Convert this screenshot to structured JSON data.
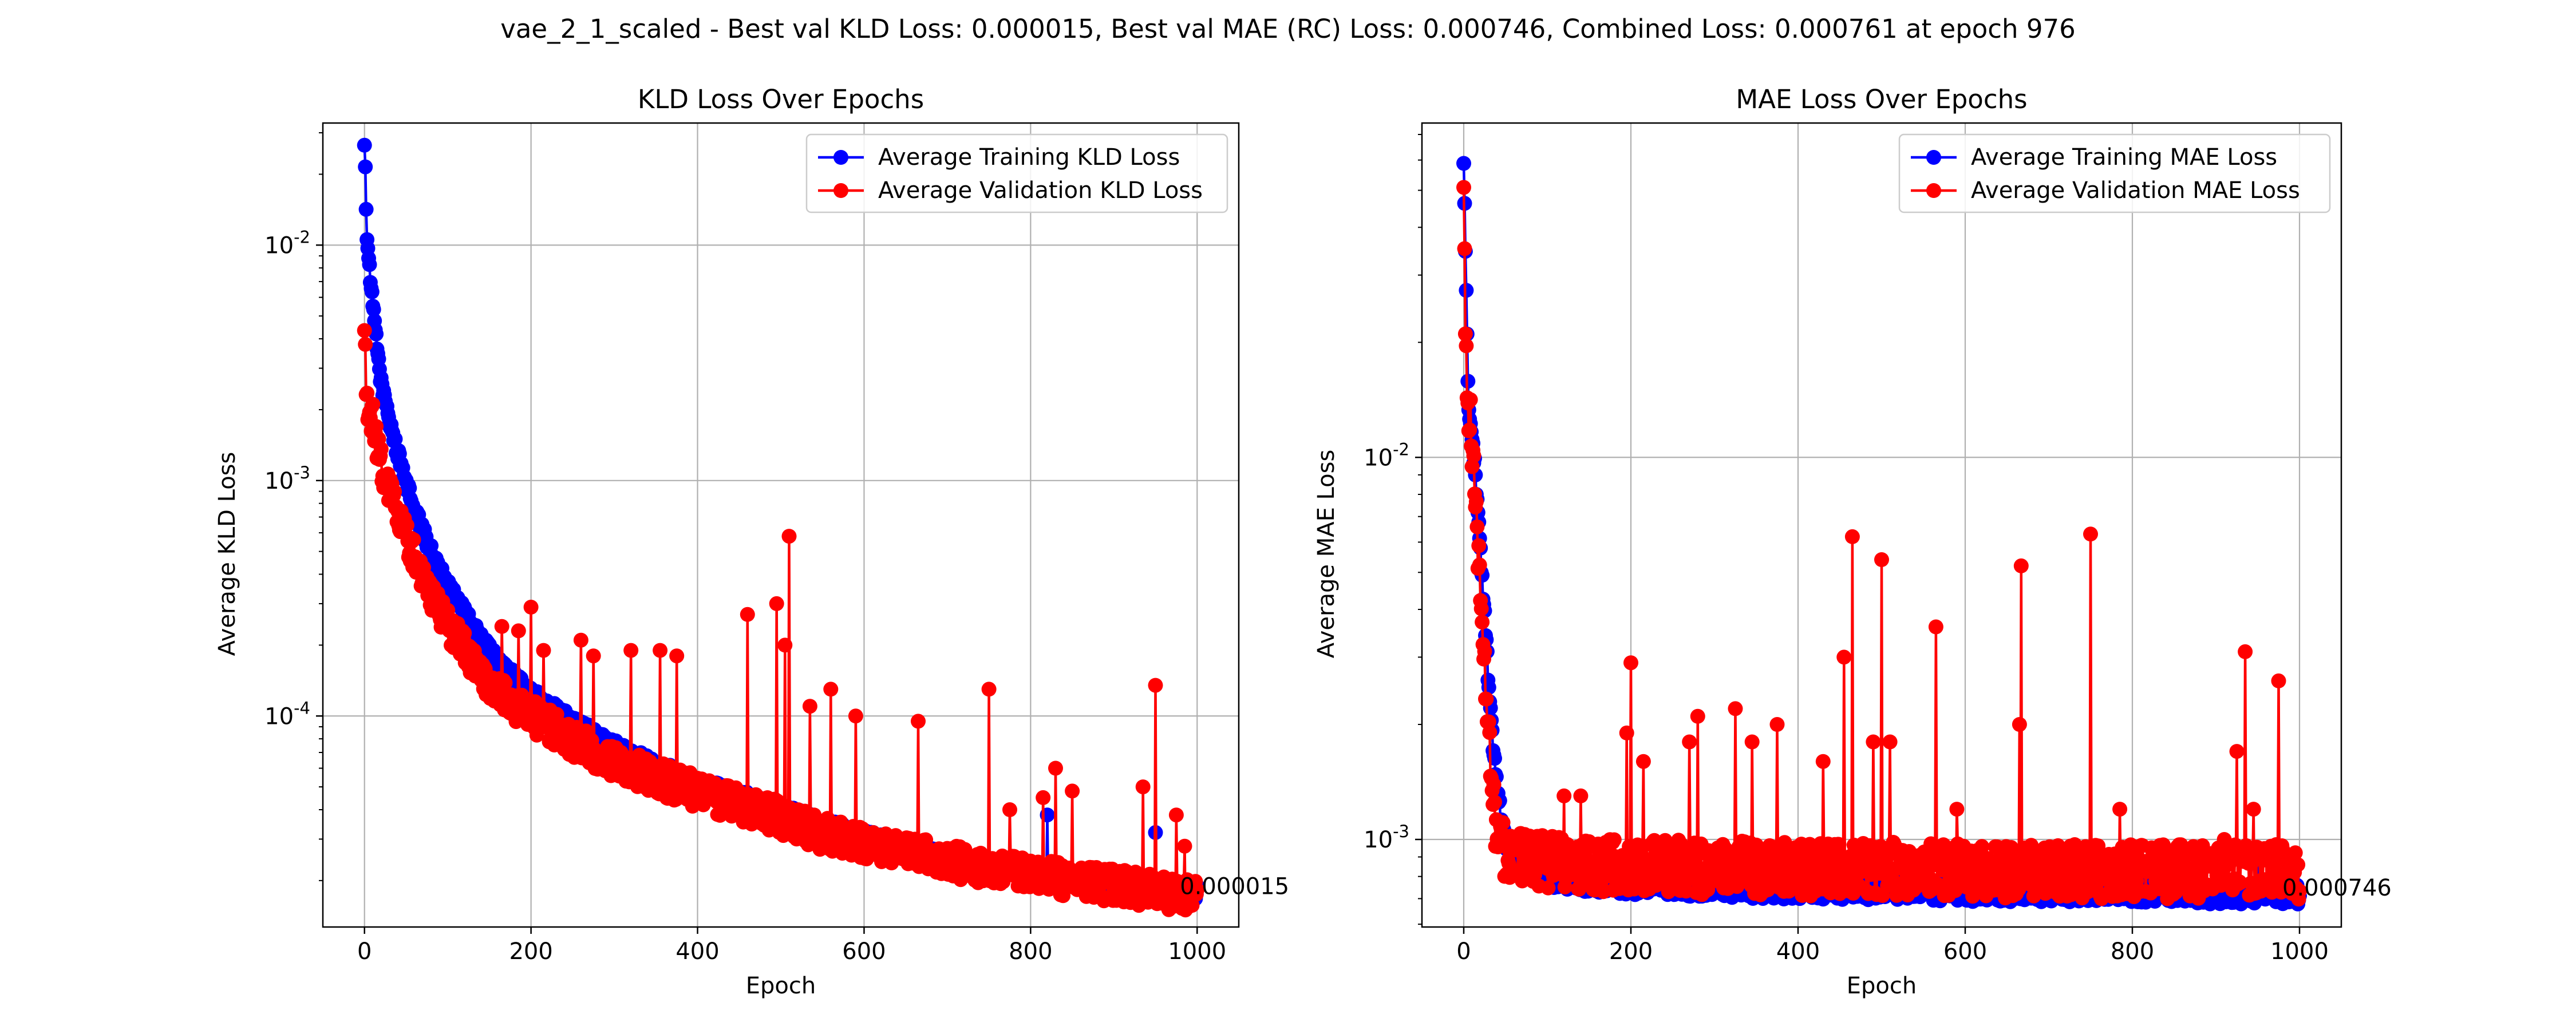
{
  "figure": {
    "suptitle": "vae_2_1_scaled - Best val KLD Loss: 0.000015, Best val MAE (RC) Loss: 0.000746, Combined Loss: 0.000761 at epoch 976"
  },
  "colors": {
    "training": "#0000ff",
    "validation": "#ff0000",
    "grid": "#b0b0b0",
    "axis": "#000000"
  },
  "chart_data": [
    {
      "type": "line",
      "title": "KLD Loss Over Epochs",
      "xlabel": "Epoch",
      "ylabel": "Average KLD Loss",
      "yscale": "log",
      "xlim": [
        -50,
        1050
      ],
      "ylim": [
        1.27e-05,
        0.033
      ],
      "xticks": [
        0,
        200,
        400,
        600,
        800,
        1000
      ],
      "xtick_labels": [
        "0",
        "200",
        "400",
        "600",
        "800",
        "1000"
      ],
      "yticks": [
        0.0001,
        0.001,
        0.01
      ],
      "ytick_labels": [
        "10^-4",
        "10^-3",
        "10^-2"
      ],
      "grid": true,
      "legend_position": "upper right",
      "annotation": "0.000015",
      "train_curve": {
        "points": [
          [
            0,
            0.028
          ],
          [
            3,
            0.011
          ],
          [
            6,
            0.0078
          ],
          [
            10,
            0.0055
          ],
          [
            15,
            0.0037
          ],
          [
            20,
            0.0026
          ],
          [
            30,
            0.0018
          ],
          [
            40,
            0.0013
          ],
          [
            60,
            0.00075
          ],
          [
            80,
            0.0005
          ],
          [
            100,
            0.00036
          ],
          [
            130,
            0.00024
          ],
          [
            160,
            0.00017
          ],
          [
            200,
            0.000125
          ],
          [
            250,
            9.5e-05
          ],
          [
            300,
            7.5e-05
          ],
          [
            350,
            6.2e-05
          ],
          [
            400,
            5.2e-05
          ],
          [
            450,
            4.6e-05
          ],
          [
            500,
            4e-05
          ],
          [
            550,
            3.5e-05
          ],
          [
            600,
            3.1e-05
          ],
          [
            650,
            2.8e-05
          ],
          [
            700,
            2.5e-05
          ],
          [
            750,
            2.3e-05
          ],
          [
            800,
            2.1e-05
          ],
          [
            850,
            2e-05
          ],
          [
            900,
            1.9e-05
          ],
          [
            950,
            1.8e-05
          ],
          [
            1000,
            1.7e-05
          ]
        ]
      },
      "val_curve": {
        "points": [
          [
            0,
            0.0038
          ],
          [
            3,
            0.002
          ],
          [
            6,
            0.0018
          ],
          [
            10,
            0.0017
          ],
          [
            15,
            0.0013
          ],
          [
            20,
            0.0011
          ],
          [
            30,
            0.00085
          ],
          [
            40,
            0.00065
          ],
          [
            60,
            0.00045
          ],
          [
            80,
            0.00031
          ],
          [
            100,
            0.00023
          ],
          [
            130,
            0.00016
          ],
          [
            160,
            0.00012
          ],
          [
            200,
            9.5e-05
          ],
          [
            250,
            7.5e-05
          ],
          [
            300,
            6e-05
          ],
          [
            350,
            5.2e-05
          ],
          [
            400,
            4.5e-05
          ],
          [
            450,
            4e-05
          ],
          [
            500,
            3.5e-05
          ],
          [
            550,
            3e-05
          ],
          [
            600,
            2.7e-05
          ],
          [
            650,
            2.5e-05
          ],
          [
            700,
            2.3e-05
          ],
          [
            750,
            2.1e-05
          ],
          [
            800,
            2e-05
          ],
          [
            850,
            1.9e-05
          ],
          [
            900,
            1.8e-05
          ],
          [
            950,
            1.7e-05
          ],
          [
            1000,
            1.6e-05
          ]
        ]
      },
      "train_spikes": [
        [
          820,
          3.8e-05
        ],
        [
          950,
          3.2e-05
        ],
        [
          1000,
          1.9e-05
        ]
      ],
      "val_spikes": [
        [
          165,
          0.00024
        ],
        [
          185,
          0.00023
        ],
        [
          200,
          0.00029
        ],
        [
          215,
          0.00019
        ],
        [
          260,
          0.00021
        ],
        [
          275,
          0.00018
        ],
        [
          320,
          0.00019
        ],
        [
          355,
          0.00019
        ],
        [
          375,
          0.00018
        ],
        [
          460,
          0.00027
        ],
        [
          495,
          0.0003
        ],
        [
          505,
          0.0002
        ],
        [
          510,
          0.00058
        ],
        [
          535,
          0.00011
        ],
        [
          560,
          0.00013
        ],
        [
          590,
          0.0001
        ],
        [
          665,
          9.5e-05
        ],
        [
          750,
          0.00013
        ],
        [
          775,
          4e-05
        ],
        [
          815,
          4.5e-05
        ],
        [
          830,
          6e-05
        ],
        [
          850,
          4.8e-05
        ],
        [
          935,
          5e-05
        ],
        [
          950,
          0.000135
        ],
        [
          975,
          3.8e-05
        ],
        [
          985,
          2.8e-05
        ]
      ]
    },
    {
      "type": "line",
      "title": "MAE Loss Over Epochs",
      "xlabel": "Epoch",
      "ylabel": "Average MAE Loss",
      "yscale": "log",
      "xlim": [
        -50,
        1050
      ],
      "ylim": [
        0.00059,
        0.075
      ],
      "xticks": [
        0,
        200,
        400,
        600,
        800,
        1000
      ],
      "xtick_labels": [
        "0",
        "200",
        "400",
        "600",
        "800",
        "1000"
      ],
      "yticks": [
        0.001,
        0.01
      ],
      "ytick_labels": [
        "10^-3",
        "10^-2"
      ],
      "grid": true,
      "legend_position": "upper right",
      "annotation": "0.000746",
      "train_curve": {
        "points": [
          [
            0,
            0.06
          ],
          [
            2,
            0.035
          ],
          [
            5,
            0.015
          ],
          [
            10,
            0.011
          ],
          [
            15,
            0.0085
          ],
          [
            20,
            0.0055
          ],
          [
            25,
            0.0038
          ],
          [
            30,
            0.0025
          ],
          [
            35,
            0.0018
          ],
          [
            40,
            0.0013
          ],
          [
            50,
            0.001
          ],
          [
            60,
            0.00092
          ],
          [
            80,
            0.00085
          ],
          [
            100,
            0.0008
          ],
          [
            150,
            0.00077
          ],
          [
            200,
            0.00076
          ],
          [
            300,
            0.00075
          ],
          [
            400,
            0.00074
          ],
          [
            500,
            0.00074
          ],
          [
            600,
            0.00073
          ],
          [
            700,
            0.00073
          ],
          [
            800,
            0.00073
          ],
          [
            900,
            0.00072
          ],
          [
            1000,
            0.00072
          ]
        ]
      },
      "val_curve": {
        "points": [
          [
            0,
            0.055
          ],
          [
            2,
            0.019
          ],
          [
            5,
            0.014
          ],
          [
            10,
            0.01
          ],
          [
            15,
            0.0065
          ],
          [
            20,
            0.0042
          ],
          [
            25,
            0.0025
          ],
          [
            30,
            0.0017
          ],
          [
            35,
            0.0012
          ],
          [
            40,
            0.00095
          ],
          [
            50,
            0.00087
          ],
          [
            60,
            0.00085
          ],
          [
            80,
            0.00084
          ],
          [
            100,
            0.00082
          ],
          [
            150,
            0.00081
          ],
          [
            200,
            0.0008
          ],
          [
            300,
            0.0008
          ],
          [
            400,
            0.00079
          ],
          [
            500,
            0.00079
          ],
          [
            600,
            0.00079
          ],
          [
            700,
            0.00078
          ],
          [
            800,
            0.00078
          ],
          [
            900,
            0.00078
          ],
          [
            1000,
            0.00078
          ]
        ]
      },
      "train_spikes": [
        [
          825,
          0.00093
        ],
        [
          950,
          0.00095
        ]
      ],
      "val_spikes": [
        [
          120,
          0.0013
        ],
        [
          140,
          0.0013
        ],
        [
          195,
          0.0019
        ],
        [
          200,
          0.0029
        ],
        [
          215,
          0.0016
        ],
        [
          270,
          0.0018
        ],
        [
          280,
          0.0021
        ],
        [
          325,
          0.0022
        ],
        [
          345,
          0.0018
        ],
        [
          375,
          0.002
        ],
        [
          430,
          0.0016
        ],
        [
          455,
          0.003
        ],
        [
          465,
          0.0062
        ],
        [
          490,
          0.0018
        ],
        [
          500,
          0.0054
        ],
        [
          510,
          0.0018
        ],
        [
          565,
          0.0036
        ],
        [
          590,
          0.0012
        ],
        [
          665,
          0.002
        ],
        [
          667,
          0.0052
        ],
        [
          750,
          0.0063
        ],
        [
          785,
          0.0012
        ],
        [
          910,
          0.001
        ],
        [
          925,
          0.0017
        ],
        [
          935,
          0.0031
        ],
        [
          945,
          0.0012
        ],
        [
          975,
          0.0026
        ]
      ]
    }
  ]
}
